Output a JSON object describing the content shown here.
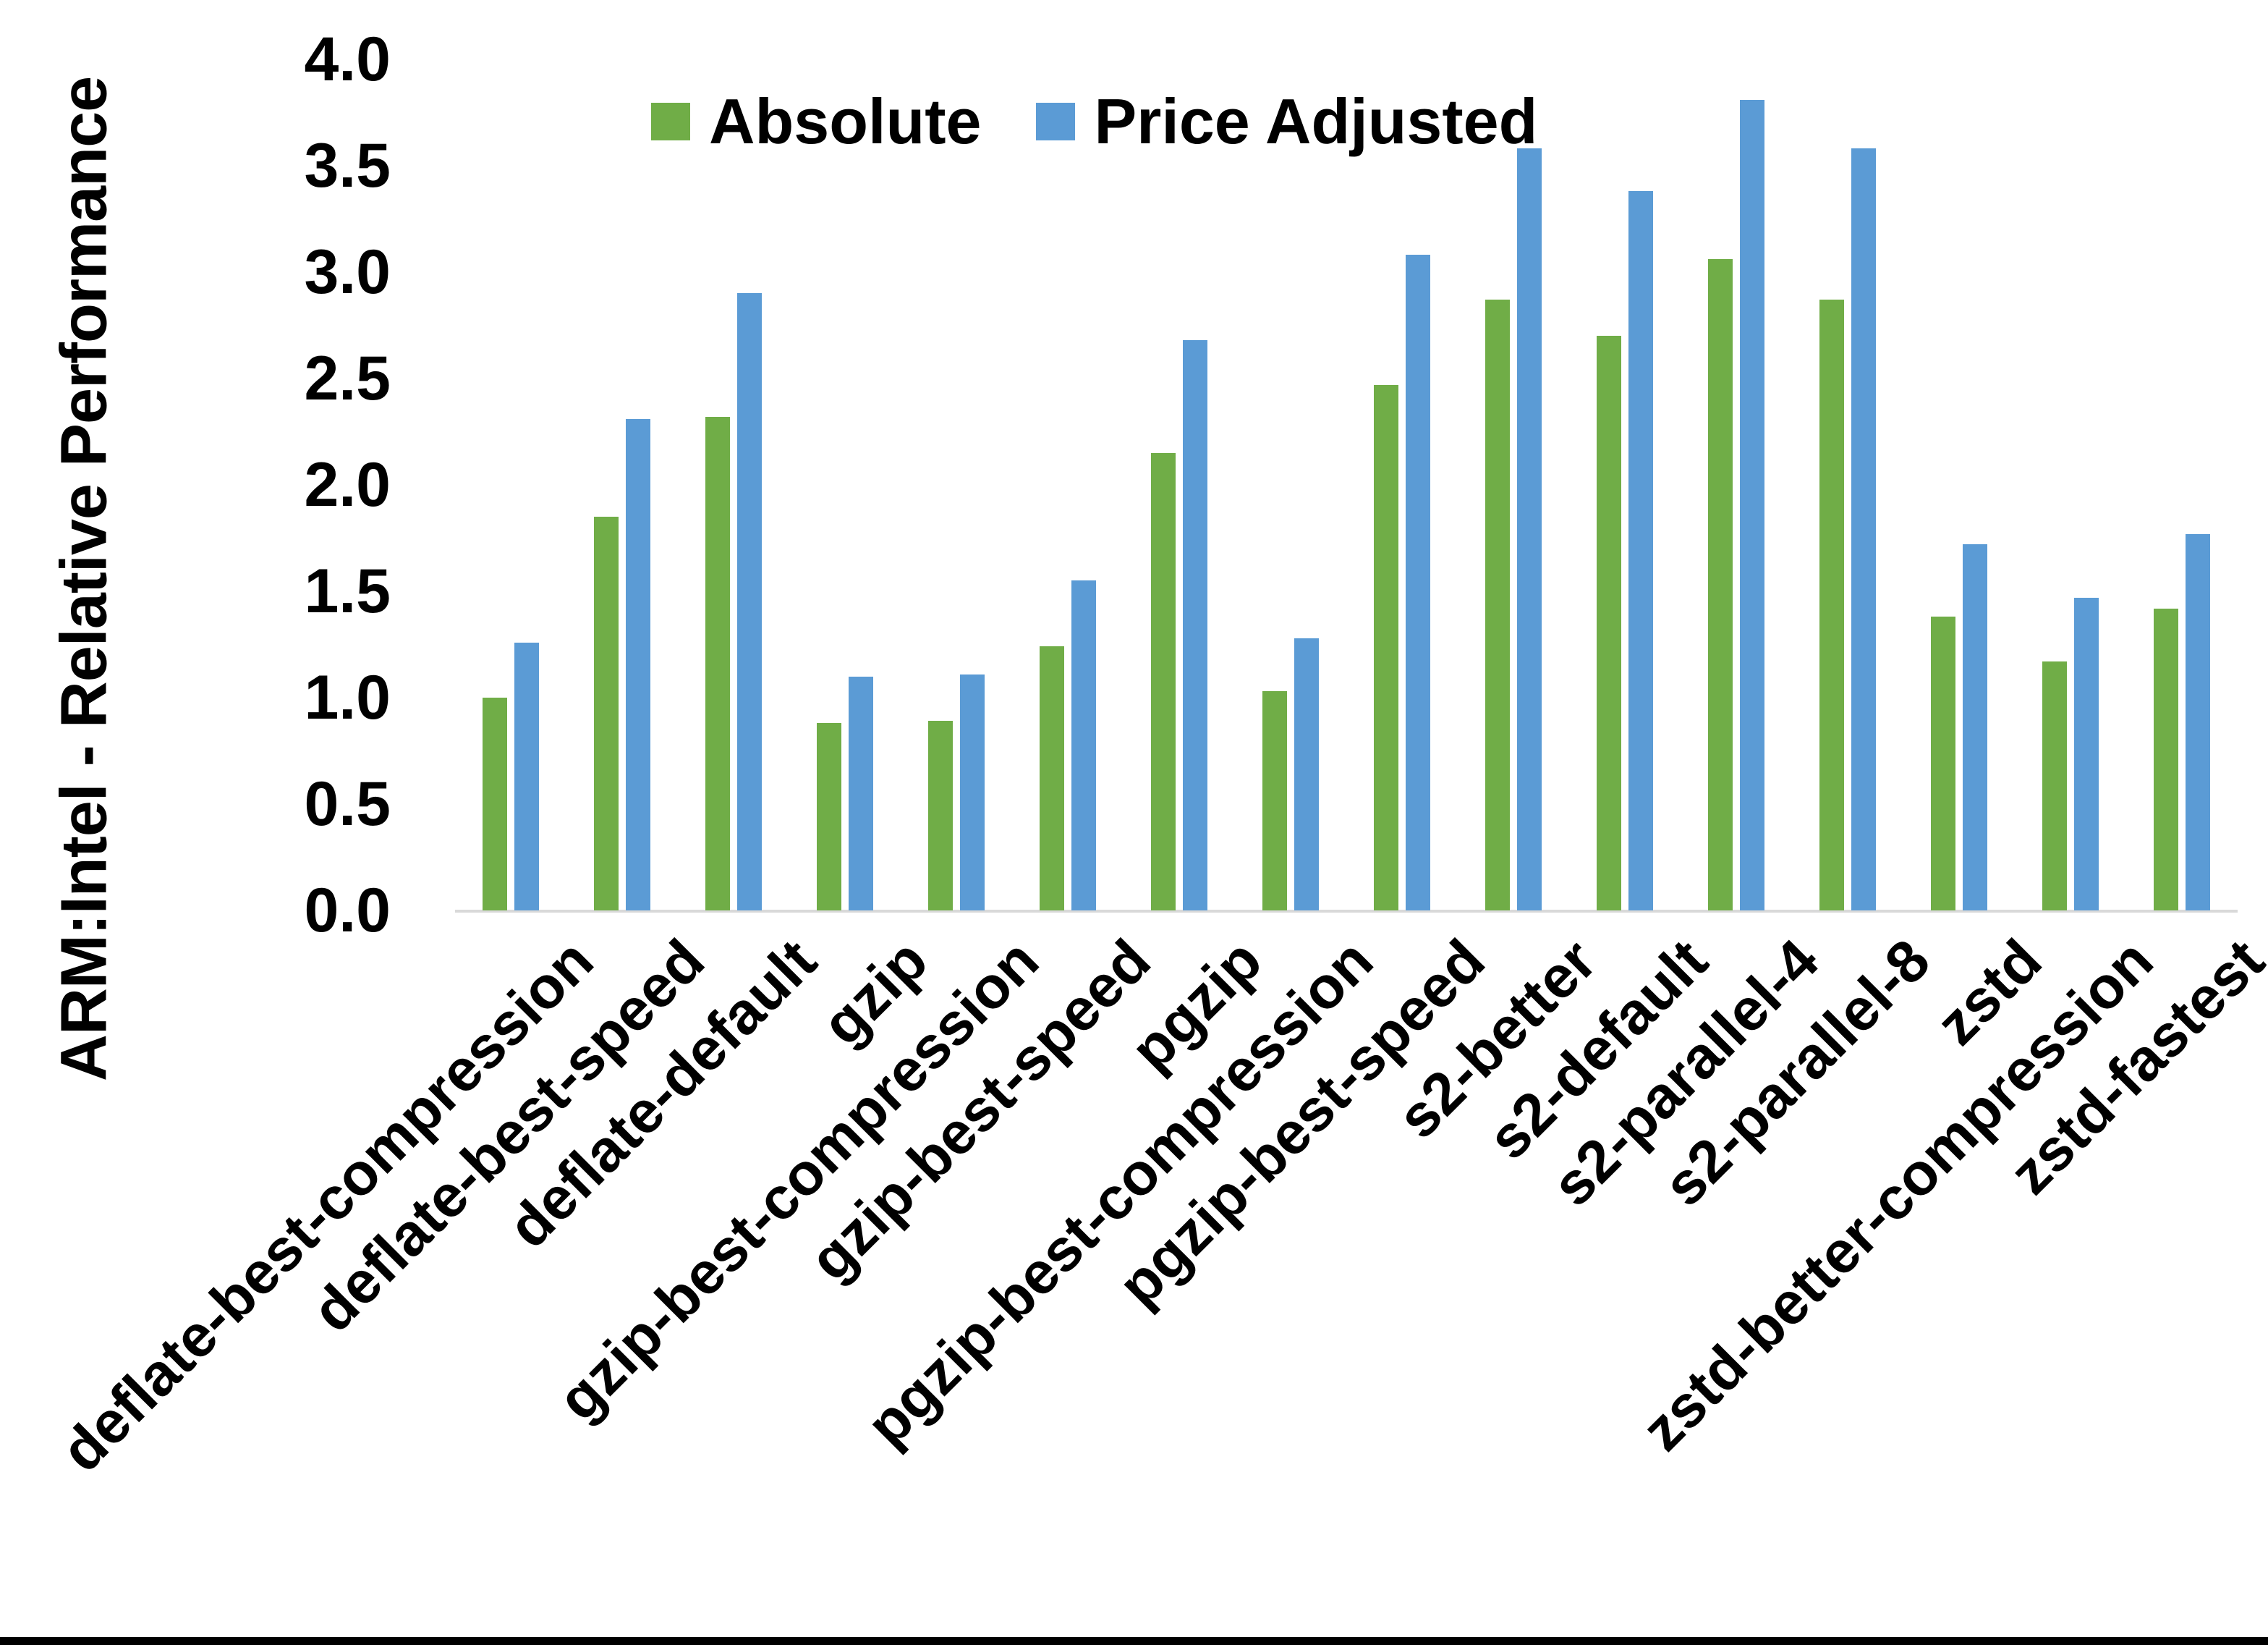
{
  "chart_data": {
    "type": "bar",
    "title": "",
    "ylabel": "ARM:Intel - Relative Performance",
    "xlabel": "",
    "ylim": [
      0.0,
      4.0
    ],
    "ytick_labels": [
      "0.0",
      "0.5",
      "1.0",
      "1.5",
      "2.0",
      "2.5",
      "3.0",
      "3.5",
      "4.0"
    ],
    "grid": false,
    "legend_position": "top-center",
    "categories": [
      "deflate-best-compression",
      "deflate-best-speed",
      "deflate-default",
      "gzip",
      "gzip-best-compression",
      "gzip-best-speed",
      "pgzip",
      "pgzip-best-compression",
      "pgzip-best-speed",
      "s2-better",
      "s2-default",
      "s2-parallel-4",
      "s2-parallel-8",
      "zstd",
      "zstd-better-compression",
      "zstd-fastest"
    ],
    "series": [
      {
        "name": "Absolute",
        "color": "#70AD47",
        "values": [
          1.0,
          1.85,
          2.32,
          0.88,
          0.89,
          1.24,
          2.15,
          1.03,
          2.47,
          2.87,
          2.7,
          3.06,
          2.87,
          1.38,
          1.17,
          1.42
        ]
      },
      {
        "name": "Price Adjusted",
        "color": "#5B9BD5",
        "values": [
          1.26,
          2.31,
          2.9,
          1.1,
          1.11,
          1.55,
          2.68,
          1.28,
          3.08,
          3.58,
          3.38,
          3.81,
          3.58,
          1.72,
          1.47,
          1.77
        ]
      }
    ]
  },
  "style": {
    "background": "#ffffff",
    "axis_line_color": "#d9d9d9",
    "text_color": "#000000",
    "bottom_border_color": "#000000"
  }
}
